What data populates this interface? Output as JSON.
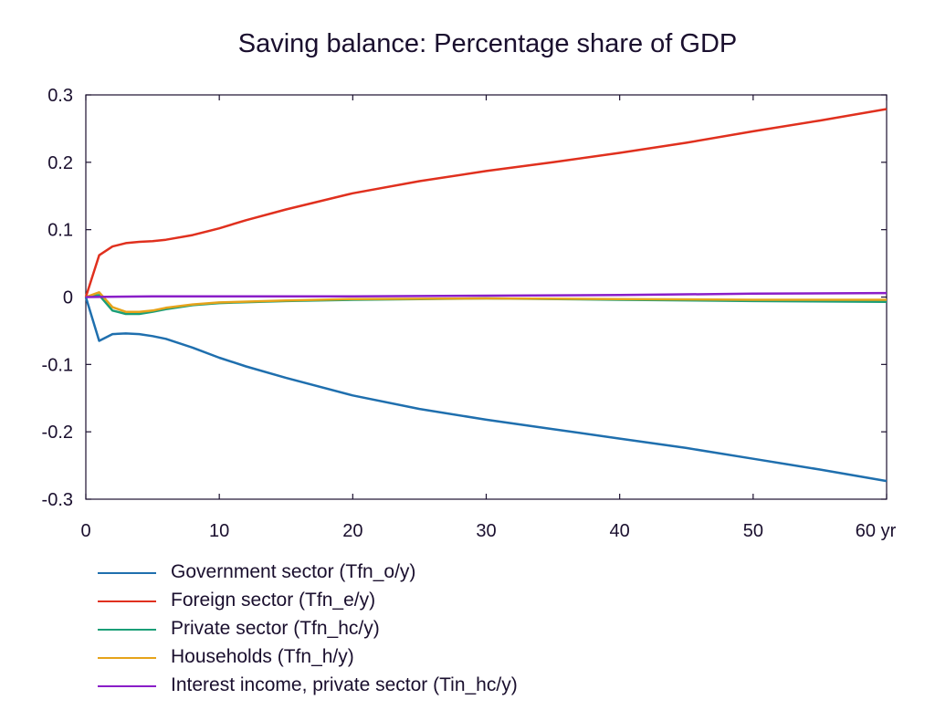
{
  "chart_data": {
    "type": "line",
    "title": "Saving balance: Percentage share of GDP",
    "xlabel": "",
    "ylabel": "",
    "x_unit_label": "yr",
    "xlim": [
      0,
      60
    ],
    "ylim": [
      -0.3,
      0.3
    ],
    "x_ticks": [
      0,
      10,
      20,
      30,
      40,
      50,
      60
    ],
    "y_ticks": [
      0.3,
      0.2,
      0.1,
      0,
      -0.1,
      -0.2,
      -0.3
    ],
    "x_tick_labels": [
      "0",
      "10",
      "20",
      "30",
      "40",
      "50",
      "60 yr"
    ],
    "y_tick_labels": [
      "0.3",
      "0.2",
      "0.1",
      "0",
      "-0.1",
      "-0.2",
      "-0.3"
    ],
    "grid": false,
    "legend_position": "bottom",
    "series": [
      {
        "name": "Government sector (Tfn_o/y)",
        "color": "#1f6fae",
        "x": [
          0,
          1,
          2,
          3,
          4,
          5,
          6,
          8,
          10,
          12,
          15,
          20,
          25,
          30,
          35,
          40,
          45,
          50,
          55,
          60
        ],
        "values": [
          0,
          -0.065,
          -0.055,
          -0.054,
          -0.055,
          -0.058,
          -0.062,
          -0.075,
          -0.09,
          -0.103,
          -0.12,
          -0.146,
          -0.166,
          -0.182,
          -0.196,
          -0.21,
          -0.224,
          -0.24,
          -0.256,
          -0.273
        ]
      },
      {
        "name": "Foreign sector (Tfn_e/y)",
        "color": "#e0301e",
        "x": [
          0,
          1,
          2,
          3,
          4,
          5,
          6,
          8,
          10,
          12,
          15,
          20,
          25,
          30,
          35,
          40,
          45,
          50,
          55,
          60
        ],
        "values": [
          0,
          0.062,
          0.075,
          0.08,
          0.082,
          0.083,
          0.085,
          0.092,
          0.102,
          0.114,
          0.13,
          0.154,
          0.172,
          0.187,
          0.2,
          0.214,
          0.229,
          0.246,
          0.262,
          0.279
        ]
      },
      {
        "name": "Private sector (Tfn_hc/y)",
        "color": "#1a9e77",
        "x": [
          0,
          1,
          2,
          3,
          4,
          5,
          6,
          8,
          10,
          15,
          20,
          30,
          40,
          50,
          60
        ],
        "values": [
          0,
          0.003,
          -0.02,
          -0.025,
          -0.025,
          -0.022,
          -0.018,
          -0.012,
          -0.009,
          -0.006,
          -0.004,
          -0.002,
          -0.004,
          -0.006,
          -0.007
        ]
      },
      {
        "name": "Households (Tfn_h/y)",
        "color": "#e6a31a",
        "x": [
          0,
          1,
          2,
          3,
          4,
          5,
          6,
          8,
          10,
          15,
          20,
          30,
          40,
          50,
          60
        ],
        "values": [
          0,
          0.007,
          -0.015,
          -0.022,
          -0.022,
          -0.02,
          -0.016,
          -0.011,
          -0.008,
          -0.005,
          -0.003,
          -0.002,
          -0.003,
          -0.004,
          -0.004
        ]
      },
      {
        "name": "Interest income, private sector (Tin_hc/y)",
        "color": "#8a1ec8",
        "x": [
          0,
          5,
          10,
          20,
          30,
          40,
          50,
          60
        ],
        "values": [
          0,
          0.001,
          0.001,
          0.001,
          0.002,
          0.003,
          0.005,
          0.006
        ]
      }
    ]
  }
}
